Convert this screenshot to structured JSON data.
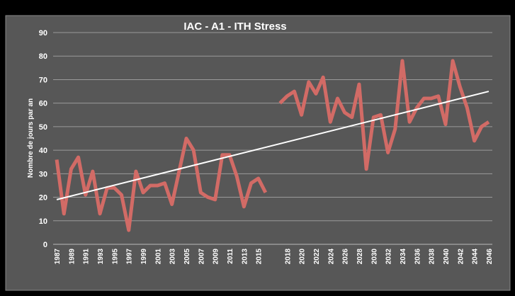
{
  "chart_data": {
    "type": "line",
    "title": "IAC - A1 - ITH Stress",
    "y_label": "Nombre de jours par an",
    "categories": [
      "1987",
      null,
      "1989",
      null,
      "1991",
      null,
      "1993",
      null,
      "1995",
      null,
      "1997",
      null,
      "1999",
      null,
      "2001",
      null,
      "2003",
      null,
      "2005",
      null,
      "2007",
      null,
      "2009",
      null,
      "2011",
      null,
      "2013",
      null,
      "2015",
      null,
      null,
      null,
      "2018",
      null,
      "2020",
      null,
      "2022",
      null,
      "2024",
      null,
      "2026",
      null,
      "2028",
      null,
      "2030",
      null,
      "2032",
      null,
      "2034",
      null,
      "2036",
      null,
      "2038",
      null,
      "2040",
      null,
      "2042",
      null,
      "2044",
      null,
      "2046"
    ],
    "series": [
      {
        "color": "#d26b66",
        "values": [
          36,
          13,
          32,
          37,
          21,
          31,
          13,
          24,
          24,
          21,
          6,
          31,
          22,
          25,
          25,
          26,
          17,
          31,
          45,
          40,
          22,
          20,
          19,
          38,
          38,
          29,
          16,
          26,
          28,
          22,
          null,
          60,
          63,
          65,
          55,
          69,
          64,
          71,
          52,
          62,
          56,
          54,
          68,
          32,
          54,
          55,
          39,
          49,
          78,
          52,
          58,
          62,
          62,
          63,
          51,
          78,
          67,
          58,
          44,
          50,
          52
        ]
      }
    ],
    "trendline": {
      "color": "#ffffff",
      "values": [
        19,
        65
      ]
    },
    "ylim": [
      0,
      90
    ],
    "yticks": [
      0,
      10,
      20,
      30,
      40,
      50,
      60,
      70,
      80,
      90
    ],
    "grid": true
  }
}
